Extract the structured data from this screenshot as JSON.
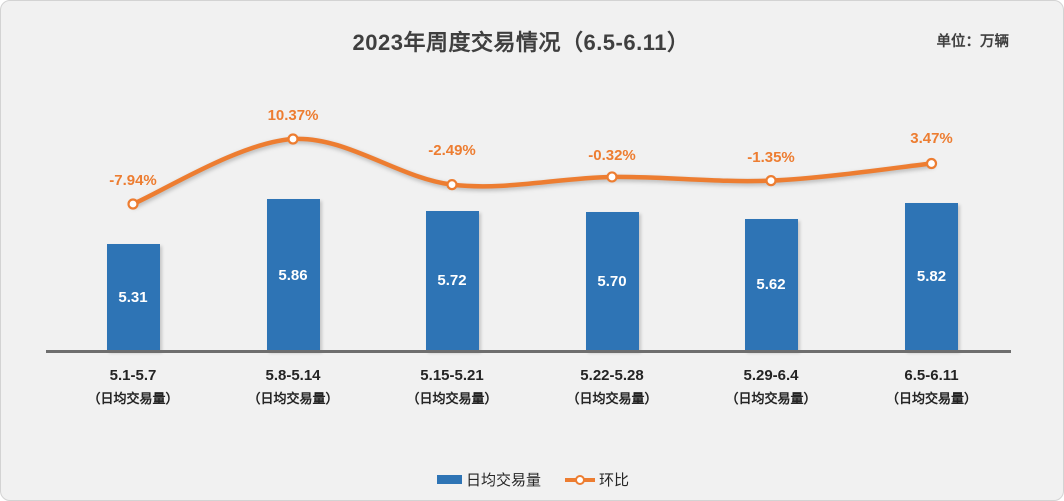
{
  "chart_data": {
    "type": "bar",
    "title": "2023年周度交易情况（6.5-6.11）",
    "unit": "单位：万辆",
    "categories": [
      "5.1-5.7",
      "5.8-5.14",
      "5.15-5.21",
      "5.22-5.28",
      "5.29-6.4",
      "6.5-6.11"
    ],
    "category_sublabels": [
      "（日均交易量）",
      "（日均交易量）",
      "（日均交易量）",
      "（日均交易量）",
      "（日均交易量）",
      "（日均交易量）"
    ],
    "series": [
      {
        "name": "日均交易量",
        "type": "bar",
        "values": [
          5.31,
          5.86,
          5.72,
          5.7,
          5.62,
          5.82
        ],
        "labels": [
          "5.31",
          "5.86",
          "5.72",
          "5.70",
          "5.62",
          "5.82"
        ],
        "color": "#2E74B5"
      },
      {
        "name": "环比",
        "type": "line",
        "values": [
          -7.94,
          10.37,
          -2.49,
          -0.32,
          -1.35,
          3.47
        ],
        "labels": [
          "-7.94%",
          "10.37%",
          "-2.49%",
          "-0.32%",
          "-1.35%",
          "3.47%"
        ],
        "color": "#ED7D31"
      }
    ],
    "bar_axis_min": 4.0,
    "grid": false,
    "legend_position": "bottom",
    "colors": {
      "bar": "#2E74B5",
      "line": "#ED7D31",
      "title_text": "#3F3F3F",
      "axis_line": "#6E6E6E",
      "card_background": "#F1F1F1"
    }
  }
}
